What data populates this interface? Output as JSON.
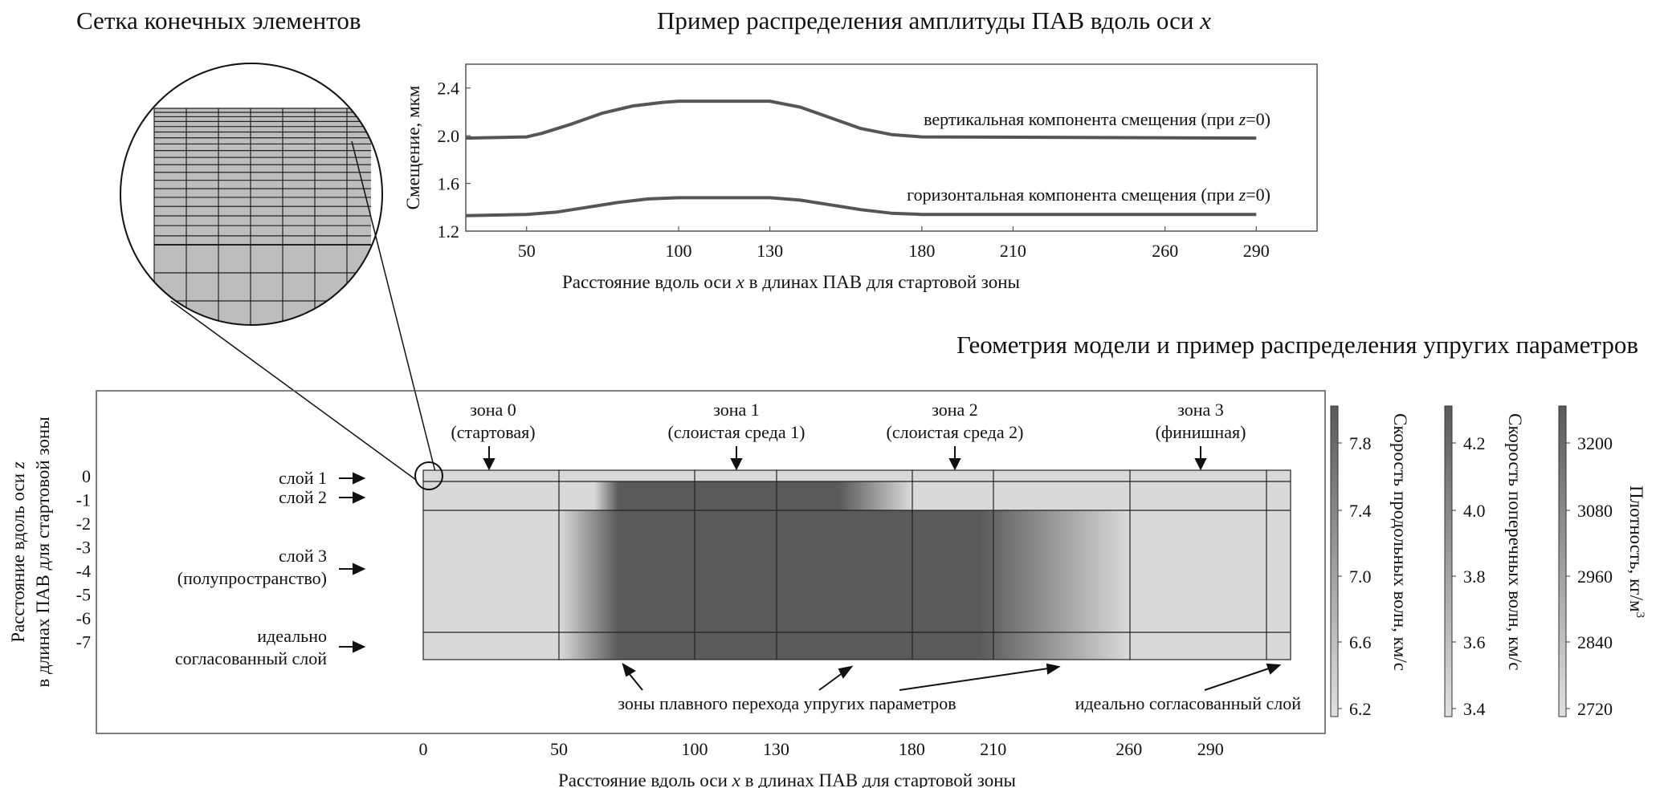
{
  "titles": {
    "mesh": "Сетка конечных элементов",
    "amplitude": "Пример распределения амплитуды ПАВ вдоль оси ",
    "amplitude_var": "x",
    "geometry": "Геометрия модели и пример распределения упругих параметров"
  },
  "chart_data": {
    "type": "line",
    "ylabel": "Смещение, мкм",
    "xlabel_pre": "Расстояние вдоль оси ",
    "xlabel_var": "x",
    "xlabel_post": " в длинах ПАВ для стартовой зоны",
    "xlim": [
      30,
      310
    ],
    "ylim": [
      1.2,
      2.6
    ],
    "xticks": [
      50,
      100,
      130,
      180,
      210,
      260,
      290
    ],
    "yticks": [
      1.2,
      1.6,
      2.0,
      2.4
    ],
    "colors": {
      "line": "#555555"
    },
    "series": [
      {
        "name": "вертикальная компонента смещения (при z=0)",
        "label_pre": "вертикальная компонента смещения (при ",
        "label_var": "z",
        "label_post": "=0)",
        "x": [
          30,
          50,
          55,
          65,
          75,
          85,
          95,
          100,
          130,
          140,
          150,
          160,
          170,
          180,
          290
        ],
        "y": [
          1.98,
          1.99,
          2.02,
          2.1,
          2.19,
          2.25,
          2.28,
          2.29,
          2.29,
          2.24,
          2.15,
          2.06,
          2.01,
          1.99,
          1.98
        ]
      },
      {
        "name": "горизонтальная компонента смещения (при z=0)",
        "label_pre": "горизонтальная компонента смещения (при ",
        "label_var": "z",
        "label_post": "=0)",
        "x": [
          30,
          50,
          60,
          70,
          80,
          90,
          100,
          130,
          140,
          150,
          160,
          170,
          180,
          290
        ],
        "y": [
          1.33,
          1.34,
          1.36,
          1.4,
          1.44,
          1.47,
          1.48,
          1.48,
          1.46,
          1.42,
          1.38,
          1.35,
          1.34,
          1.34
        ]
      }
    ]
  },
  "geometry": {
    "ylabel_line1": "Расстояние вдоль оси ",
    "ylabel_var": "z",
    "ylabel_line2": "в длинах ПАВ для стартовой зоны",
    "xlabel_pre": "Расстояние вдоль оси ",
    "xlabel_var": "x",
    "xlabel_post": " в длинах ПАВ для стартовой зоны",
    "xticks": [
      0,
      50,
      100,
      130,
      180,
      210,
      260,
      290
    ],
    "yticks": [
      "0",
      "-1",
      "-2",
      "-3",
      "-4",
      "-5",
      "-6",
      "-7"
    ],
    "zones": [
      {
        "name": "зона 0",
        "desc": "(стартовая)"
      },
      {
        "name": "зона 1",
        "desc": "(слоистая среда 1)"
      },
      {
        "name": "зона 2",
        "desc": "(слоистая среда 2)"
      },
      {
        "name": "зона 3",
        "desc": "(финишная)"
      }
    ],
    "layers": {
      "layer1": "слой 1",
      "layer2": "слой 2",
      "layer3_a": "слой 3",
      "layer3_b": "(полупространство)",
      "pml_a": "идеально",
      "pml_b": "согласованный слой"
    },
    "bottom_labels": {
      "transition": "зоны плавного перехода упругих параметров",
      "pml": "идеально согласованный слой"
    },
    "colors": {
      "light": "#d9d9d9",
      "dark": "#5a5a5a"
    }
  },
  "colorbars": [
    {
      "label": "Скорость продольных волн, км/с",
      "ticks": [
        "7.8",
        "7.4",
        "7.0",
        "6.6",
        "6.2"
      ]
    },
    {
      "label": "Скорость поперечных волн, км/с",
      "ticks": [
        "4.2",
        "4.0",
        "3.8",
        "3.6",
        "3.4"
      ]
    },
    {
      "label_pre": "Плотность, кг/м",
      "label_sup": "3",
      "ticks": [
        "3200",
        "3080",
        "2960",
        "2840",
        "2720"
      ]
    }
  ]
}
